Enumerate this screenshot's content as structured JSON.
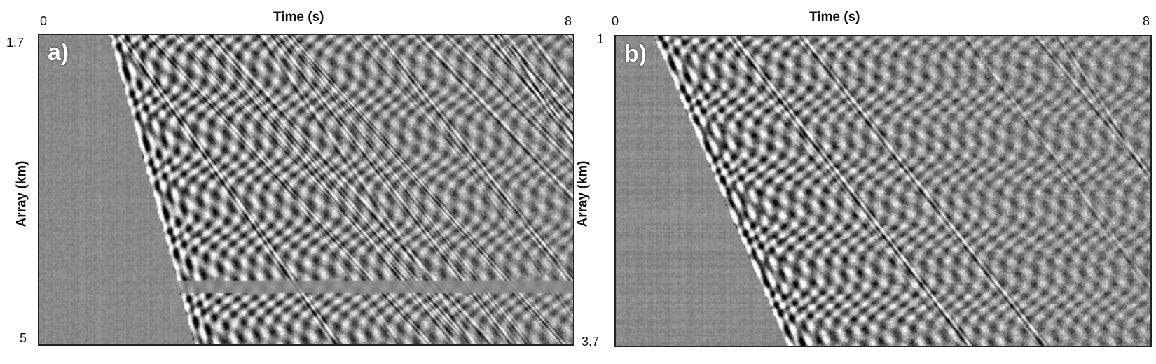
{
  "panels": [
    {
      "label": "a)",
      "x_title": "Time (s)",
      "y_title": "Array (km)",
      "x_ticks": [
        "0",
        "8"
      ],
      "y_ticks": [
        "1.7",
        "5"
      ]
    },
    {
      "label": "b)",
      "x_title": "Time (s)",
      "y_title": "Array (km)",
      "x_ticks": [
        "0",
        "8"
      ],
      "y_ticks": [
        "1",
        "3.7"
      ]
    }
  ]
}
